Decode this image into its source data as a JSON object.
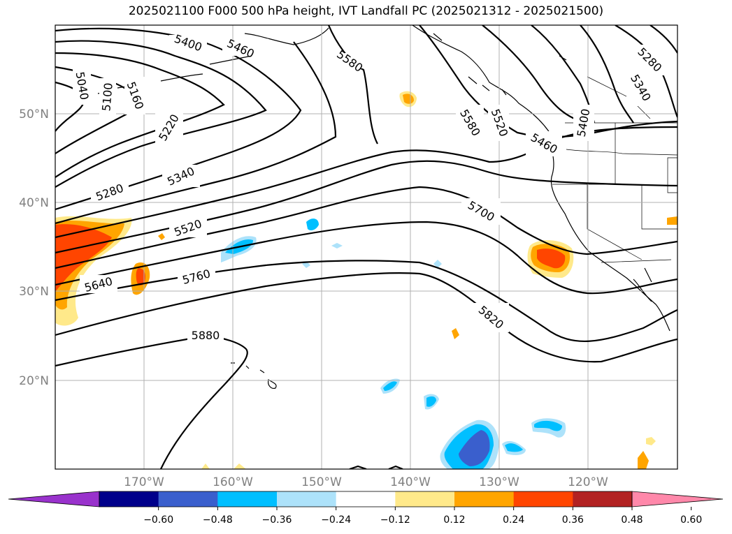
{
  "title": "2025021100 F000 500 hPa height, IVT Landfall PC (2025021312 - 2025021500)",
  "lat_labels": [
    "50°N",
    "40°N",
    "30°N",
    "20°N"
  ],
  "lon_labels": [
    "170°W",
    "160°W",
    "150°W",
    "140°W",
    "130°W",
    "120°W"
  ],
  "contour_labels": [
    "5400",
    "5460",
    "5580",
    "5040",
    "5100",
    "5160",
    "5220",
    "5280",
    "5340",
    "5520",
    "5640",
    "5760",
    "5880",
    "5700",
    "5820",
    "5580",
    "5520",
    "5460",
    "5400",
    "5280",
    "5340"
  ],
  "colorbar": {
    "colors": [
      "#9932CC",
      "#00008B",
      "#3A5FCD",
      "#00BFFF",
      "#ADE2FA",
      "#FFFFFF",
      "#FFE98A",
      "#FFA500",
      "#FF4500",
      "#B22222",
      "#FF88AA"
    ],
    "ticks": [
      "−0.60",
      "−0.48",
      "−0.36",
      "−0.24",
      "−0.12",
      "0.12",
      "0.24",
      "0.36",
      "0.48",
      "0.60"
    ]
  },
  "palette": {
    "gridline": "#b0b0b0",
    "contour": "#000000",
    "axis_label": "#808080"
  }
}
